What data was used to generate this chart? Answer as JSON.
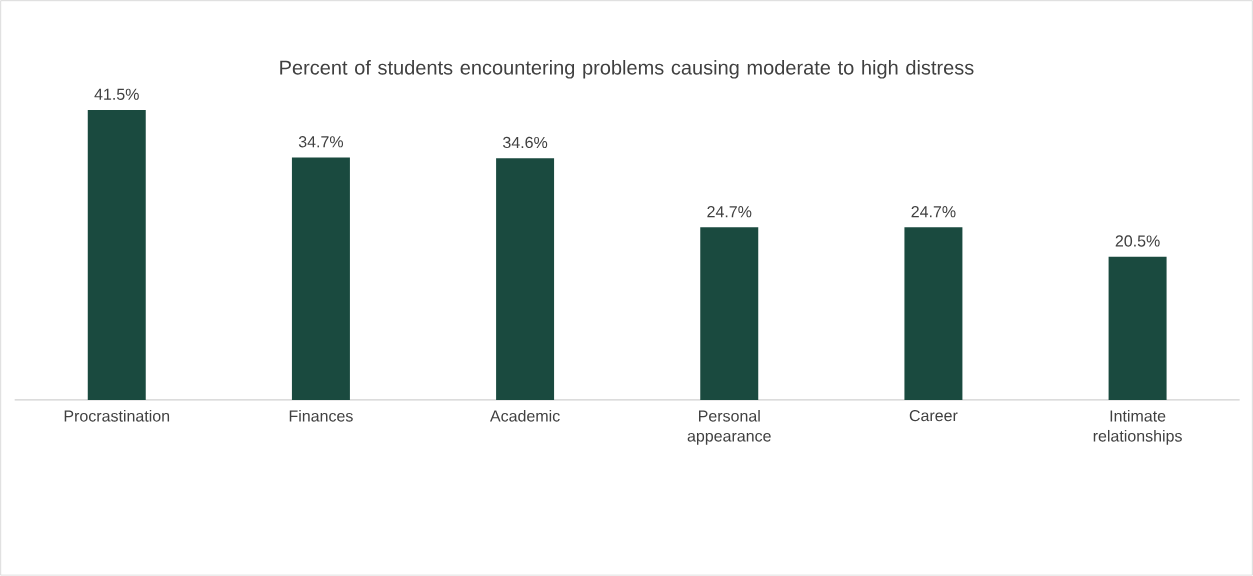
{
  "chart_data": {
    "type": "bar",
    "title": "Percent of students encountering problems causing moderate to high distress",
    "categories": [
      "Procrastination",
      "Finances",
      "Academic",
      "Personal appearance",
      "Career",
      "Intimate relationships"
    ],
    "values": [
      41.5,
      34.7,
      34.6,
      24.7,
      24.7,
      20.5
    ],
    "value_labels": [
      "41.5%",
      "34.7%",
      "34.6%",
      "24.7%",
      "24.7%",
      "20.5%"
    ],
    "color": "#1a4a3f"
  }
}
